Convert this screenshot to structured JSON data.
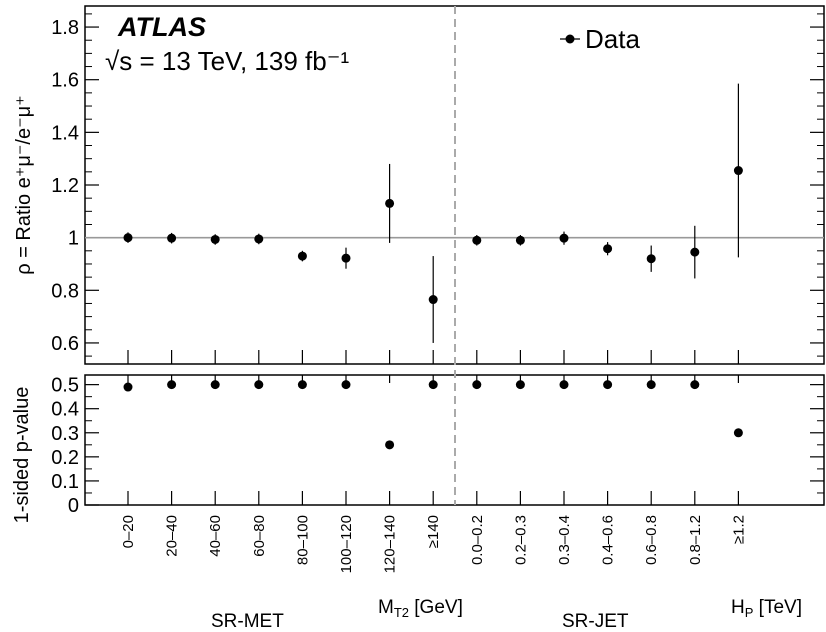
{
  "chart_data": [
    {
      "type": "scatter",
      "panel": "ratio",
      "ylabel": "ρ = Ratio e⁺μ⁻/e⁻μ⁺",
      "ylim": [
        0.52,
        1.88
      ],
      "yticks": [
        "0.6",
        "0.8",
        "1",
        "1.2",
        "1.4",
        "1.6",
        "1.8"
      ],
      "reference_line": 1.0,
      "experiment_label": "ATLAS",
      "energy_label": "√s = 13 TeV, 139 fb⁻¹",
      "legend": {
        "label": "Data",
        "placement": "top-right"
      },
      "series": [
        {
          "name": "Data",
          "points": [
            {
              "y": 1.0,
              "err": 0.02
            },
            {
              "y": 0.998,
              "err": 0.02
            },
            {
              "y": 0.993,
              "err": 0.02
            },
            {
              "y": 0.995,
              "err": 0.02
            },
            {
              "y": 0.93,
              "err": 0.02
            },
            {
              "y": 0.922,
              "err": 0.04
            },
            {
              "y": 1.13,
              "err": 0.15
            },
            {
              "y": 0.765,
              "err": 0.165
            },
            {
              "y": 0.99,
              "err": 0.02
            },
            {
              "y": 0.99,
              "err": 0.02
            },
            {
              "y": 0.998,
              "err": 0.025
            },
            {
              "y": 0.958,
              "err": 0.025
            },
            {
              "y": 0.92,
              "err": 0.05
            },
            {
              "y": 0.945,
              "err": 0.1
            },
            {
              "y": 1.255,
              "err": 0.33
            }
          ]
        }
      ]
    },
    {
      "type": "scatter",
      "panel": "pvalue",
      "ylabel": "1-sided p-value",
      "ylim": [
        0,
        0.54
      ],
      "yticks": [
        "0",
        "0.1",
        "0.2",
        "0.3",
        "0.4",
        "0.5"
      ],
      "series": [
        {
          "name": "Data",
          "values": [
            0.49,
            0.5,
            0.5,
            0.5,
            0.5,
            0.5,
            0.25,
            0.5,
            0.5,
            0.5,
            0.5,
            0.5,
            0.5,
            0.5,
            0.3
          ]
        }
      ]
    }
  ],
  "categories": [
    "0–20",
    "20–40",
    "40–60",
    "60–80",
    "80–100",
    "100–120",
    "120–140",
    "≥140",
    "0.0–0.2",
    "0.2–0.3",
    "0.3–0.4",
    "0.4–0.6",
    "0.6–0.8",
    "0.8–1.2",
    "≥1.2"
  ],
  "groups": {
    "sr_met": "SR-MET",
    "sr_jet": "SR-JET",
    "mt2_axis_main": "M",
    "mt2_axis_sub": "T2",
    "mt2_axis_unit": " [GeV]",
    "hp_axis_main": "H",
    "hp_axis_sub": "P",
    "hp_axis_unit": " [TeV]"
  },
  "colors": {
    "reference_line": "#999999",
    "divider": "#aaaaaa",
    "marker": "#000000"
  }
}
